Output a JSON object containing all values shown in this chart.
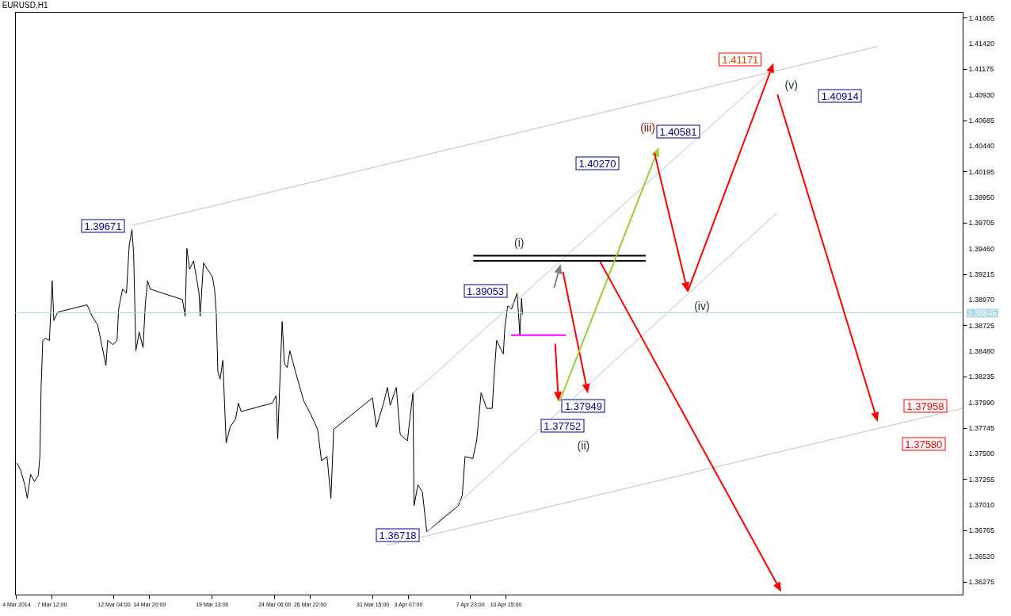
{
  "chart_data": {
    "type": "line",
    "title": "EURUSD,H1",
    "xlim": [
      "2014-03-04T18:00",
      "2014-05-15T00:00"
    ],
    "ylim": [
      1.3615,
      1.4172
    ],
    "xticks": [
      {
        "value": "2014-03-04T20:00",
        "label": "4 Mar 2014"
      },
      {
        "value": "2014-03-07T12:00",
        "label": "7 Mar 12:00"
      },
      {
        "value": "2014-03-12T04:00",
        "label": "12 Mar 04:00"
      },
      {
        "value": "2014-03-14T20:00",
        "label": "14 Mar 20:00"
      },
      {
        "value": "2014-03-19T13:00",
        "label": "19 Mar 13:00"
      },
      {
        "value": "2014-03-24T06:00",
        "label": "24 Mar 06:00"
      },
      {
        "value": "2014-03-26T22:00",
        "label": "26 Mar 22:00"
      },
      {
        "value": "2014-03-31T15:00",
        "label": "31 Mar 15:00"
      },
      {
        "value": "2014-04-03T07:00",
        "label": "3 Apr 07:00"
      },
      {
        "value": "2014-04-07T23:00",
        "label": "7 Apr 23:00"
      },
      {
        "value": "2014-04-10T15:00",
        "label": "10 Apr 15:00"
      }
    ],
    "yticks": [
      1.41665,
      {
        "value": 1.4142,
        "label": "1.41420"
      },
      1.41175,
      {
        "value": 1.4093,
        "label": "1.40930"
      },
      1.40685,
      {
        "value": 1.4044,
        "label": "1.40440"
      },
      1.40195,
      {
        "value": 1.3995,
        "label": "1.39950"
      },
      1.39705,
      {
        "value": 1.3946,
        "label": "1.39460"
      },
      1.39215,
      {
        "value": 1.3897,
        "label": "1.38970"
      },
      1.38725,
      {
        "value": 1.3848,
        "label": "1.38480"
      },
      1.38235,
      {
        "value": 1.3799,
        "label": "1.37990"
      },
      1.37745,
      {
        "value": 1.375,
        "label": "1.37500"
      },
      1.37255,
      {
        "value": 1.3701,
        "label": "1.37010"
      },
      1.36765,
      {
        "value": 1.3652,
        "label": "1.36520"
      },
      1.36275
    ],
    "grid": false,
    "series": [
      {
        "type": "line",
        "color": "#000000",
        "x": [
          "2014-03-04T21:00",
          "2014-03-05T04:00",
          "2014-03-05T12:00",
          "2014-03-05T16:00",
          "2014-03-05T22:00",
          "2014-03-06T05:00",
          "2014-03-06T12:00",
          "2014-03-06T15:00",
          "2014-03-06T17:00",
          "2014-03-06T20:00",
          "2014-03-07T01:00",
          "2014-03-07T08:00",
          "2014-03-07T13:00",
          "2014-03-07T16:00",
          "2014-03-07T23:00",
          "2014-03-10T04:00",
          "2014-03-10T13:00",
          "2014-03-10T23:00",
          "2014-03-11T14:00",
          "2014-03-11T17:00",
          "2014-03-12T03:00",
          "2014-03-12T10:00",
          "2014-03-12T13:00",
          "2014-03-12T20:00",
          "2014-03-13T03:00",
          "2014-03-13T08:00",
          "2014-03-13T13:00",
          "2014-03-13T16:00",
          "2014-03-13T20:00",
          "2014-03-14T02:00",
          "2014-03-14T09:00",
          "2014-03-14T13:00",
          "2014-03-14T17:00",
          "2014-03-14T22:00",
          "2014-03-17T08:00",
          "2014-03-17T13:00",
          "2014-03-17T16:00",
          "2014-03-17T21:00",
          "2014-03-18T04:00",
          "2014-03-18T09:00",
          "2014-03-18T14:00",
          "2014-03-18T16:00",
          "2014-03-18T22:00",
          "2014-03-19T05:00",
          "2014-03-19T14:00",
          "2014-03-19T18:00",
          "2014-03-19T21:00",
          "2014-03-20T00:00",
          "2014-03-20T04:00",
          "2014-03-20T09:00",
          "2014-03-20T12:00",
          "2014-03-20T15:00",
          "2014-03-20T22:00",
          "2014-03-21T08:00",
          "2014-03-21T13:00",
          "2014-03-21T18:00",
          "2014-03-24T02:00",
          "2014-03-24T09:00",
          "2014-03-24T12:00",
          "2014-03-24T20:00",
          "2014-03-25T00:00",
          "2014-03-25T05:00",
          "2014-03-25T10:00",
          "2014-03-25T20:00",
          "2014-03-26T11:00",
          "2014-03-26T23:00",
          "2014-03-27T12:00",
          "2014-03-27T19:00",
          "2014-03-28T05:00",
          "2014-03-28T12:00",
          "2014-03-28T17:00",
          "2014-03-31T15:00",
          "2014-03-31T22:00",
          "2014-04-01T11:00",
          "2014-04-01T18:00",
          "2014-04-01T23:00",
          "2014-04-02T10:00",
          "2014-04-02T17:00",
          "2014-04-03T06:00",
          "2014-04-03T16:00",
          "2014-04-03T18:00",
          "2014-04-04T01:00",
          "2014-04-04T09:00",
          "2014-04-04T17:00",
          "2014-04-07T02:00",
          "2014-04-07T09:00",
          "2014-04-07T14:00",
          "2014-04-08T04:00",
          "2014-04-08T11:00",
          "2014-04-08T19:00",
          "2014-04-09T05:00",
          "2014-04-09T15:00",
          "2014-04-09T19:00",
          "2014-04-09T23:00",
          "2014-04-10T11:00",
          "2014-04-10T14:00",
          "2014-04-10T19:00",
          "2014-04-11T02:00",
          "2014-04-11T12:00",
          "2014-04-11T17:00",
          "2014-04-11T20:00",
          "2014-04-11T22:00"
        ],
        "values": [
          1.3741,
          1.3734,
          1.3719,
          1.3707,
          1.373,
          1.3723,
          1.3729,
          1.3749,
          1.3813,
          1.3858,
          1.386,
          1.3858,
          1.3915,
          1.3877,
          1.3885,
          1.3892,
          1.3881,
          1.3873,
          1.3834,
          1.3858,
          1.3854,
          1.3858,
          1.3888,
          1.3907,
          1.3903,
          1.3949,
          1.3964,
          1.3941,
          1.3848,
          1.3866,
          1.3851,
          1.3892,
          1.3915,
          1.3907,
          1.3897,
          1.3881,
          1.3946,
          1.3926,
          1.3934,
          1.3919,
          1.3903,
          1.3881,
          1.3932,
          1.3926,
          1.3919,
          1.3907,
          1.3885,
          1.3828,
          1.3821,
          1.3839,
          1.3798,
          1.376,
          1.3775,
          1.3783,
          1.3798,
          1.379,
          1.3798,
          1.3805,
          1.3764,
          1.3876,
          1.3836,
          1.3832,
          1.3848,
          1.3828,
          1.38,
          1.3788,
          1.3773,
          1.3743,
          1.3747,
          1.3707,
          1.3773,
          1.3803,
          1.3775,
          1.3798,
          1.3813,
          1.3796,
          1.3813,
          1.3768,
          1.3762,
          1.3808,
          1.37,
          1.372,
          1.3713,
          1.3675,
          1.37,
          1.371,
          1.3747,
          1.3745,
          1.3762,
          1.3808,
          1.3793,
          1.3793,
          1.3828,
          1.3858,
          1.3845,
          1.3871,
          1.3891,
          1.3888,
          1.3903,
          1.3863,
          1.3898,
          1.3883
        ]
      },
      {
        "type": "line",
        "color": "#c0c0c0",
        "x": [
          "2014-03-13T13:00",
          "2014-05-08T15:00"
        ],
        "values": [
          1.3968,
          1.4139
        ]
      },
      {
        "type": "line",
        "color": "#c0c0c0",
        "x": [
          "2014-04-01T16:00",
          "2014-05-14T23:00"
        ],
        "values": [
          1.3662,
          1.3793
        ]
      },
      {
        "type": "line",
        "color": "#c0c0c0",
        "x": [
          "2014-04-03T07:00",
          "2014-04-30T15:00"
        ],
        "values": [
          1.3803,
          1.4115
        ]
      },
      {
        "type": "line",
        "color": "#c0c0c0",
        "x": [
          "2014-04-04T17:00",
          "2014-05-01T01:00"
        ],
        "values": [
          1.3675,
          1.398
        ]
      },
      {
        "type": "line",
        "color": "#000000",
        "x": [
          "2014-04-08T05:00",
          "2014-04-21T04:00"
        ],
        "values": [
          1.3939,
          1.3939
        ]
      },
      {
        "type": "line",
        "color": "#000000",
        "x": [
          "2014-04-08T05:00",
          "2014-04-21T04:00"
        ],
        "values": [
          1.3934,
          1.3934
        ]
      },
      {
        "type": "line",
        "color": "#ff00ff",
        "x": [
          "2014-04-11T01:00",
          "2014-04-15T04:00"
        ],
        "values": [
          1.3863,
          1.3863
        ]
      }
    ],
    "ref_lines": [
      {
        "axis": "y",
        "value": 1.38845,
        "label": "1.38845",
        "color": "#add8e6"
      }
    ],
    "annotations": [
      "1.39671",
      "1.36718",
      "1.39053",
      "1.37949",
      "1.37752",
      "1.40270",
      "1.40581",
      "1.41171",
      "1.40914",
      "1.37958",
      "1.37580",
      "(i)",
      "(ii)",
      "(iii)",
      {
        "text": "(iv)",
        "x": "2014-04-24T07:00",
        "y": 1.3905
      },
      "(v)"
    ]
  }
}
